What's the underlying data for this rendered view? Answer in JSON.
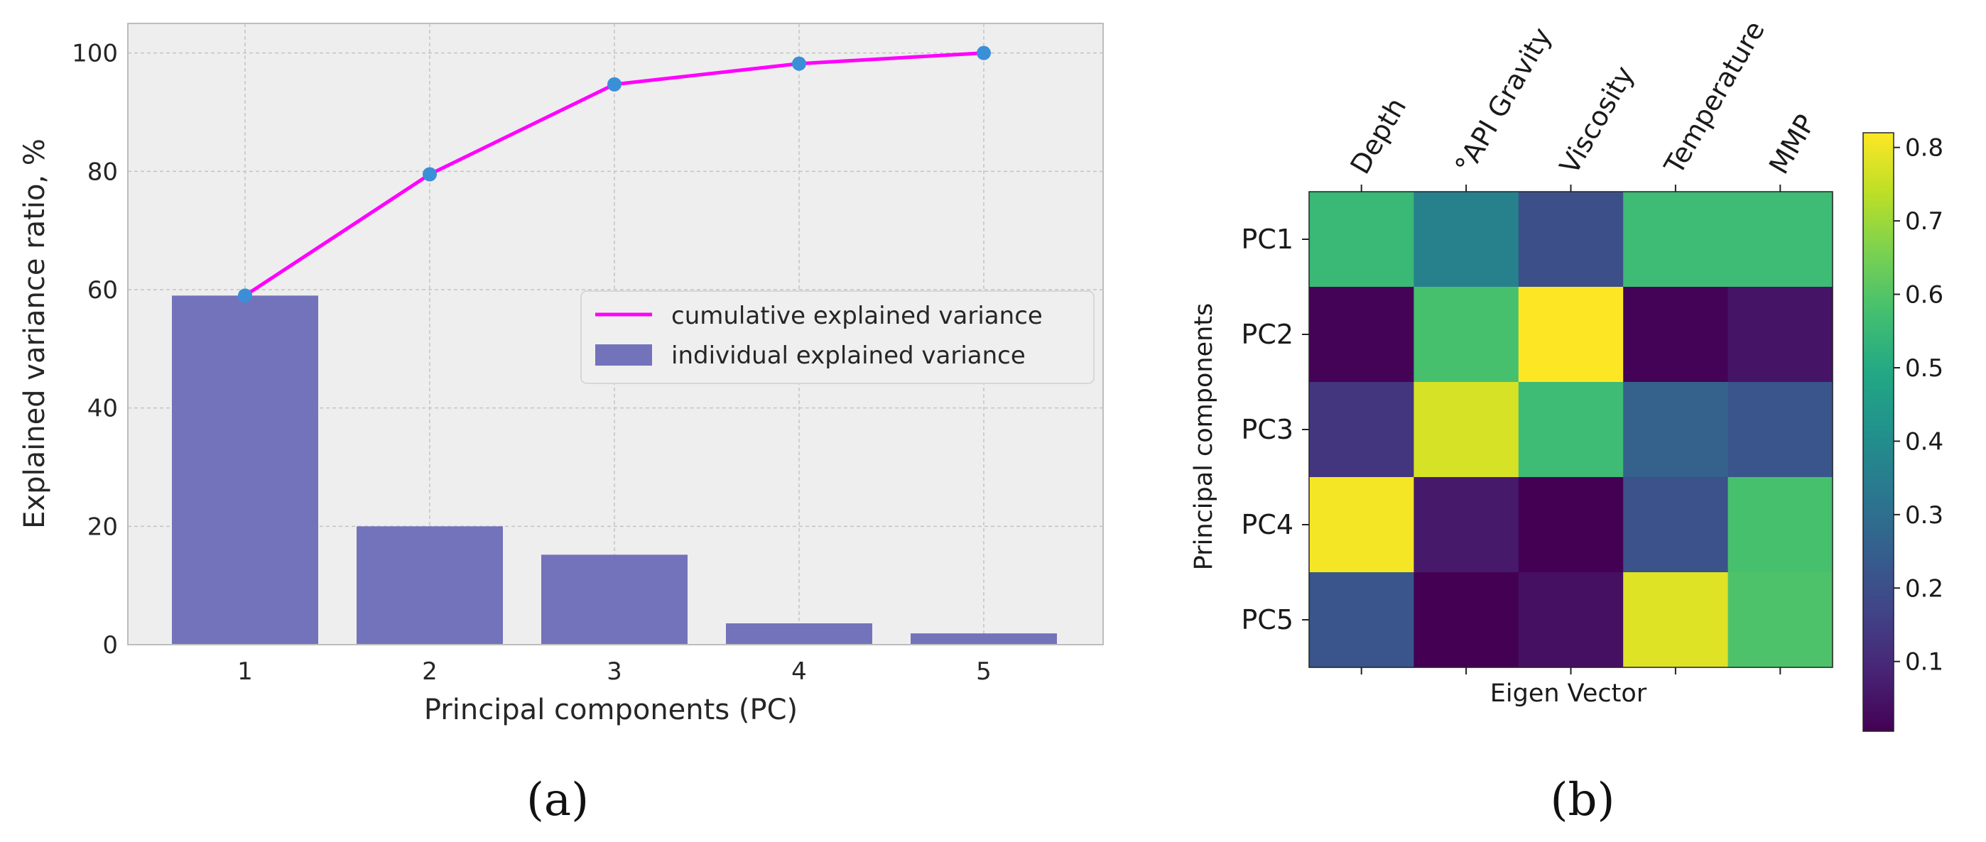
{
  "panel_labels": [
    "(a)",
    "(b)"
  ],
  "chart_data": [
    {
      "type": "bar",
      "categories": [
        "1",
        "2",
        "3",
        "4",
        "5"
      ],
      "series": [
        {
          "name": "individual explained variance",
          "type": "bar",
          "values": [
            59,
            20,
            15.2,
            3.6,
            1.9
          ],
          "color": "#7373bb"
        },
        {
          "name": "cumulative explained variance",
          "type": "line",
          "values": [
            59,
            79.5,
            94.7,
            98.2,
            100
          ],
          "color": "#ff00ff",
          "marker_color": "#3b8fd6"
        }
      ],
      "xlabel": "Principal components (PC)",
      "ylabel": "Explained variance ratio, %",
      "ylim": [
        0,
        105
      ],
      "yticks": [
        "0",
        "20",
        "40",
        "60",
        "80",
        "100"
      ],
      "grid": true,
      "legend_position": "center-right",
      "background": "#eeeeee"
    },
    {
      "type": "heatmap",
      "row_labels": [
        "PC1",
        "PC2",
        "PC3",
        "PC4",
        "PC5"
      ],
      "col_labels": [
        "Depth",
        "°API Gravity",
        "Viscosity",
        "Temperature",
        "MMP"
      ],
      "values": [
        [
          0.55,
          0.36,
          0.2,
          0.56,
          0.56
        ],
        [
          0.01,
          0.58,
          0.82,
          0.01,
          0.05
        ],
        [
          0.13,
          0.77,
          0.56,
          0.26,
          0.22
        ],
        [
          0.81,
          0.06,
          0.005,
          0.21,
          0.58
        ],
        [
          0.22,
          0.005,
          0.04,
          0.78,
          0.59
        ]
      ],
      "ylabel": "Principal components",
      "xlabel": "Eigen Vector",
      "colormap": "viridis",
      "colorbar_range": [
        0.005,
        0.82
      ],
      "colorbar_ticks": [
        "0.1",
        "0.2",
        "0.3",
        "0.4",
        "0.5",
        "0.6",
        "0.7",
        "0.8"
      ]
    }
  ]
}
